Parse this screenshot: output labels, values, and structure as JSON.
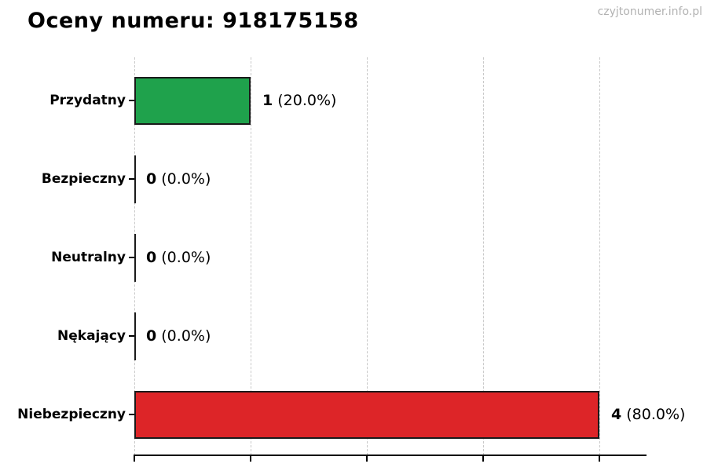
{
  "page": {
    "title": "Oceny numeru: 918175158",
    "watermark": "czyjtonumer.info.pl"
  },
  "colors": {
    "green": "#1fa24c",
    "red": "#dd2528",
    "bar_edge": "#1a1a1a",
    "grid": "#c9c9c9",
    "watermark": "#b2b2b2",
    "text": "#000000"
  },
  "chart_data": {
    "type": "bar",
    "orientation": "horizontal",
    "title": "Oceny numeru: 918175158",
    "categories": [
      "Przydatny",
      "Bezpieczny",
      "Neutralny",
      "Nękający",
      "Niebezpieczny"
    ],
    "values": [
      1,
      0,
      0,
      0,
      4
    ],
    "percentages": [
      20.0,
      0.0,
      0.0,
      0.0,
      80.0
    ],
    "value_labels": [
      "1 (20.0%)",
      "0 (0.0%)",
      "0 (0.0%)",
      "0 (0.0%)",
      "4 (80.0%)"
    ],
    "bar_colors": [
      "#1fa24c",
      "#000000",
      "#000000",
      "#000000",
      "#dd2528"
    ],
    "xlabel": "",
    "ylabel": "",
    "xlim": [
      0,
      4.4
    ],
    "xticks": [
      0,
      1,
      2,
      3,
      4
    ],
    "grid": "vertical dashed gridlines at each integer tick",
    "legend": null,
    "watermark": "czyjtonumer.info.pl"
  },
  "rows": [
    {
      "label": "Przydatny",
      "count": "1",
      "pct": " (20.0%)",
      "value": 1,
      "color": "#1fa24c"
    },
    {
      "label": "Bezpieczny",
      "count": "0",
      "pct": " (0.0%)",
      "value": 0,
      "color": "#1a1a1a"
    },
    {
      "label": "Neutralny",
      "count": "0",
      "pct": " (0.0%)",
      "value": 0,
      "color": "#1a1a1a"
    },
    {
      "label": "Nękający",
      "count": "0",
      "pct": " (0.0%)",
      "value": 0,
      "color": "#1a1a1a"
    },
    {
      "label": "Niebezpieczny",
      "count": "4",
      "pct": " (80.0%)",
      "value": 4,
      "color": "#dd2528"
    }
  ]
}
